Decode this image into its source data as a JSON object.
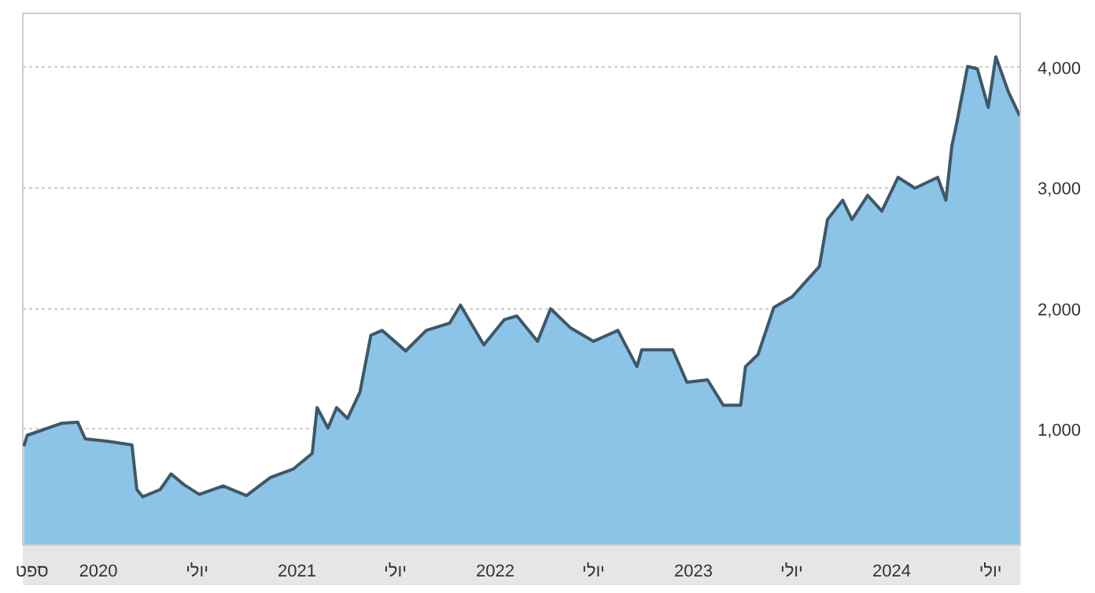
{
  "chart_data": {
    "type": "area",
    "grid": "y",
    "color": "#8cc4e8",
    "xlim": [
      "2019-08-15",
      "2024-08-25"
    ],
    "ylim": [
      40,
      4450
    ],
    "xticks": [
      {
        "value": "2019-09-01",
        "label": "ספט"
      },
      {
        "value": "2020-01-01",
        "label": "2020"
      },
      {
        "value": "2020-07-01",
        "label": "יולי"
      },
      {
        "value": "2021-01-01",
        "label": "2021"
      },
      {
        "value": "2021-07-01",
        "label": "יולי"
      },
      {
        "value": "2022-01-01",
        "label": "2022"
      },
      {
        "value": "2022-07-01",
        "label": "יולי"
      },
      {
        "value": "2023-01-01",
        "label": "2023"
      },
      {
        "value": "2023-07-01",
        "label": "יולי"
      },
      {
        "value": "2024-01-01",
        "label": "2024"
      },
      {
        "value": "2024-07-01",
        "label": "יולי"
      }
    ],
    "yticks": [
      {
        "value": 1000,
        "label": "1,000"
      },
      {
        "value": 2000,
        "label": "2,000"
      },
      {
        "value": 3000,
        "label": "3,000"
      },
      {
        "value": 4000,
        "label": "4,000"
      }
    ],
    "x": [
      "2019-08-17",
      "2019-08-23",
      "2019-10-26",
      "2019-11-24",
      "2019-12-08",
      "2020-01-20",
      "2020-03-03",
      "2020-03-12",
      "2020-03-23",
      "2020-04-24",
      "2020-05-14",
      "2020-06-07",
      "2020-07-05",
      "2020-08-18",
      "2020-09-30",
      "2020-11-13",
      "2020-12-25",
      "2021-01-29",
      "2021-02-07",
      "2021-02-27",
      "2021-03-15",
      "2021-04-04",
      "2021-04-27",
      "2021-05-17",
      "2021-06-07",
      "2021-07-20",
      "2021-08-27",
      "2021-10-09",
      "2021-10-29",
      "2021-12-11",
      "2022-01-18",
      "2022-02-10",
      "2022-03-20",
      "2022-04-13",
      "2022-05-20",
      "2022-07-01",
      "2022-08-15",
      "2022-09-19",
      "2022-09-28",
      "2022-11-24",
      "2022-12-20",
      "2023-01-27",
      "2023-02-25",
      "2023-03-29",
      "2023-04-07",
      "2023-04-30",
      "2023-05-29",
      "2023-07-02",
      "2023-08-21",
      "2023-09-05",
      "2023-10-03",
      "2023-10-20",
      "2023-11-18",
      "2023-12-14",
      "2024-01-13",
      "2024-02-13",
      "2024-03-26",
      "2024-04-10",
      "2024-04-21",
      "2024-04-30",
      "2024-05-20",
      "2024-06-07",
      "2024-06-27",
      "2024-07-11",
      "2024-08-03",
      "2024-08-24"
    ],
    "values": [
      860,
      950,
      1050,
      1060,
      920,
      900,
      870,
      500,
      440,
      500,
      630,
      540,
      460,
      530,
      450,
      600,
      670,
      800,
      1180,
      1010,
      1180,
      1090,
      1310,
      1780,
      1820,
      1650,
      1820,
      1880,
      2030,
      1700,
      1910,
      1940,
      1730,
      2000,
      1840,
      1730,
      1820,
      1520,
      1660,
      1660,
      1390,
      1410,
      1200,
      1200,
      1520,
      1620,
      2010,
      2100,
      2350,
      2740,
      2900,
      2740,
      2940,
      2810,
      3090,
      3000,
      3090,
      2900,
      3350,
      3540,
      4010,
      3990,
      3670,
      4090,
      3800,
      3600
    ]
  }
}
